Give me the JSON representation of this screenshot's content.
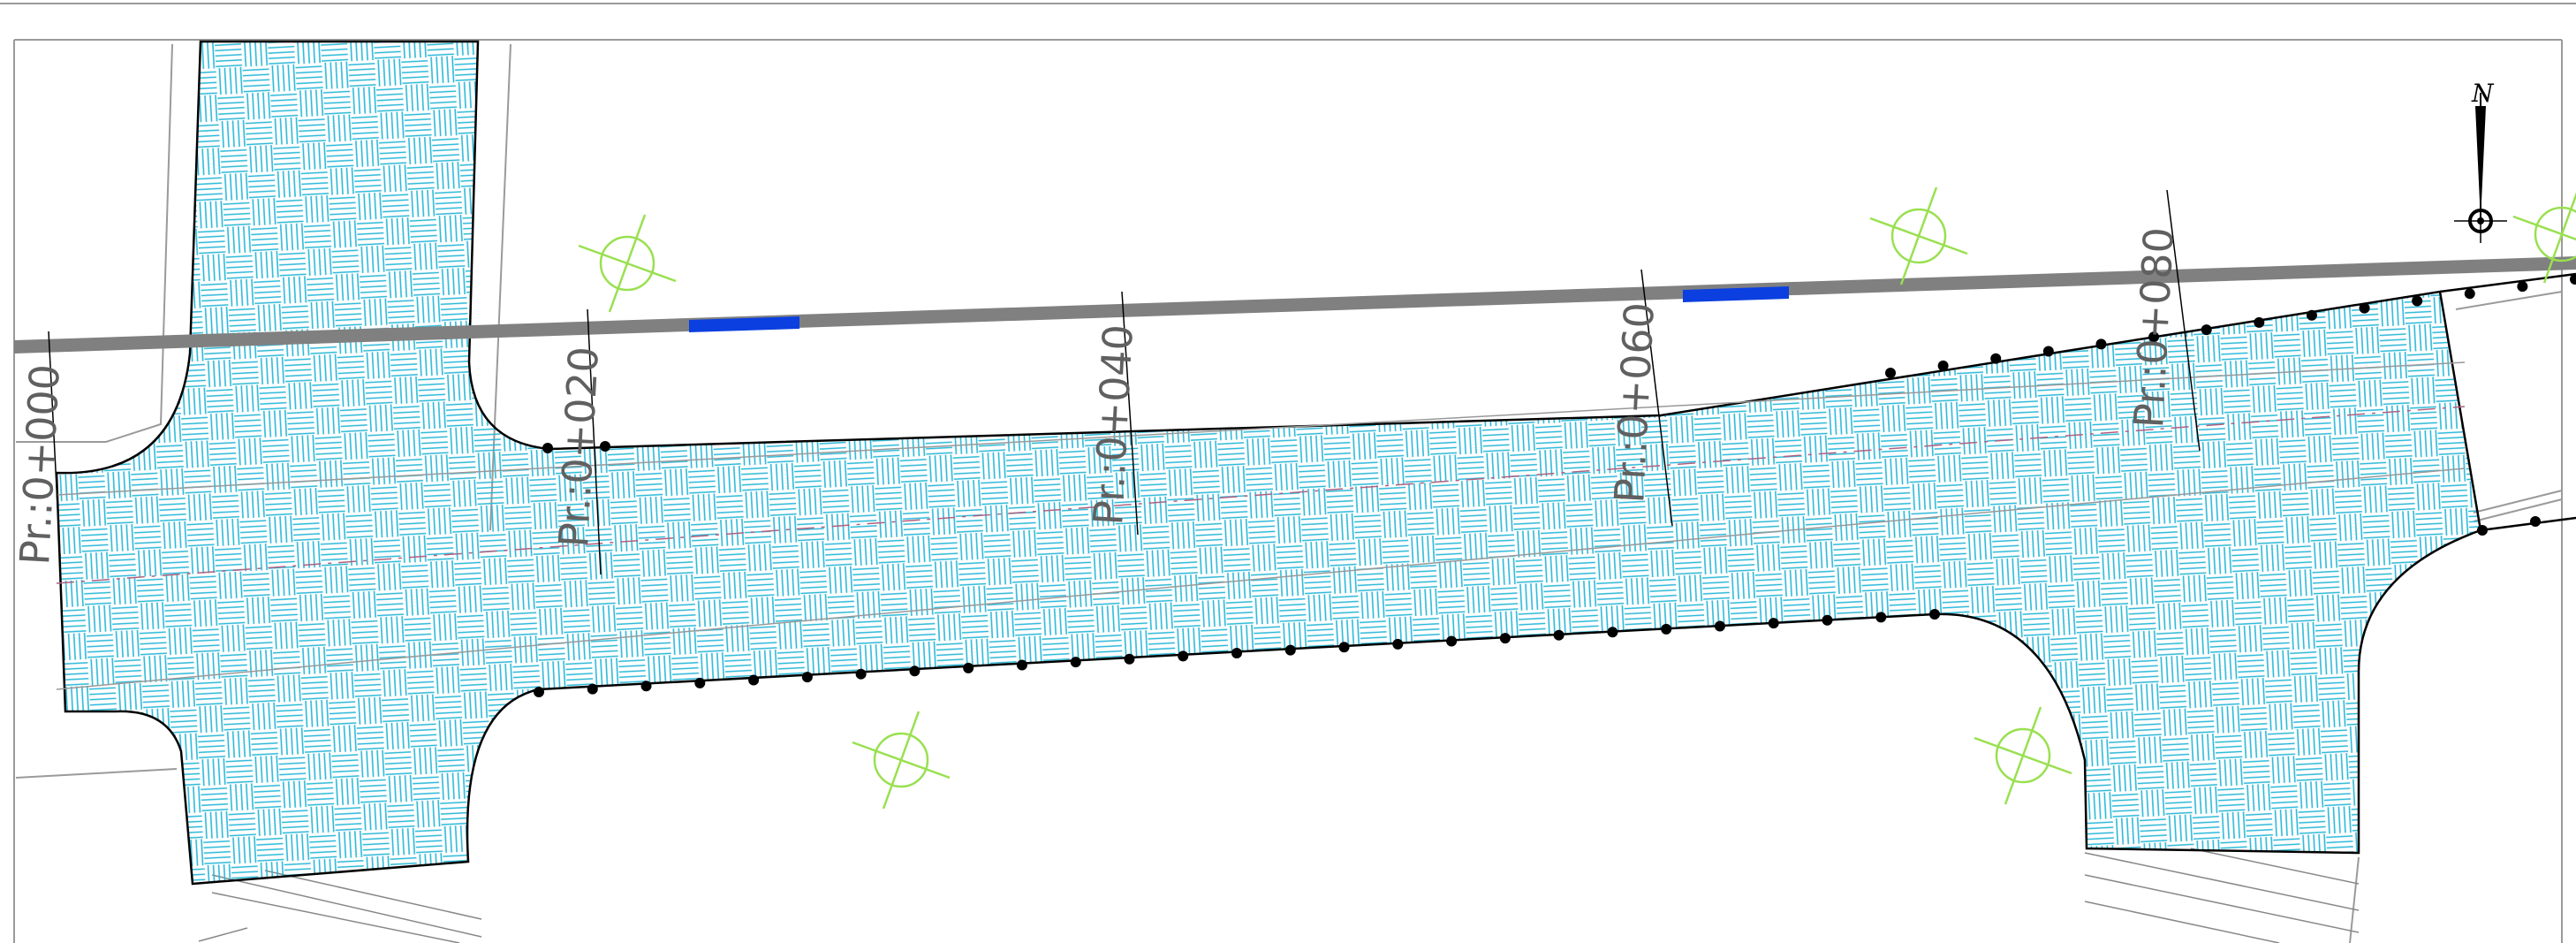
{
  "stations": [
    {
      "label": "Pr.:0+000"
    },
    {
      "label": "Pr.:0+020"
    },
    {
      "label": "Pr.:0+040"
    },
    {
      "label": "Pr.:0+060"
    },
    {
      "label": "Pr.:0+080"
    }
  ],
  "north_arrow": {
    "label": "N"
  },
  "colors": {
    "hatch": "#29b8d8",
    "road": "#808080",
    "road_marker": "#0b3fe0",
    "tree": "#99e050",
    "outline": "#000000",
    "background_lines": "#9a9a9a"
  }
}
